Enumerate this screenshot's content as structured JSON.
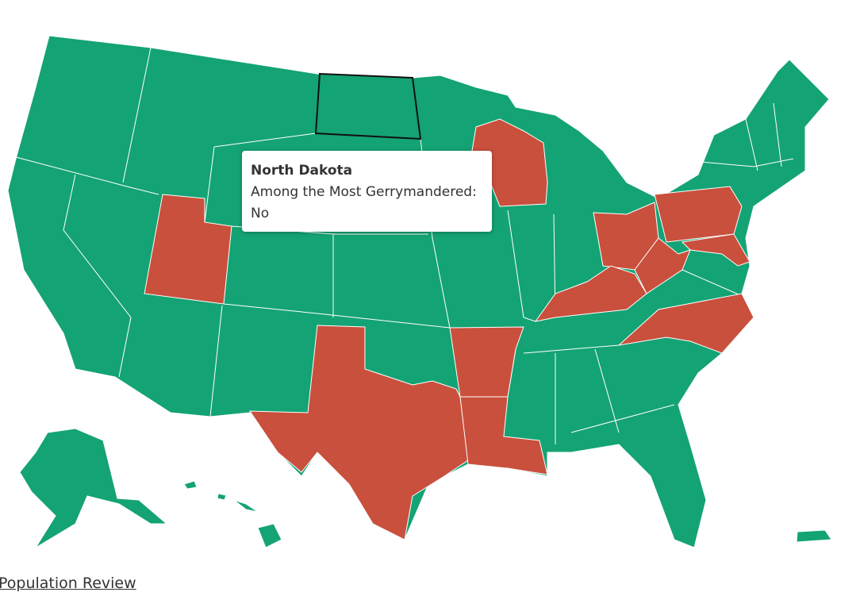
{
  "tooltip": {
    "title": "North Dakota",
    "label": "Among the Most Gerrymandered:",
    "value": "No"
  },
  "source": "Population Review"
}
